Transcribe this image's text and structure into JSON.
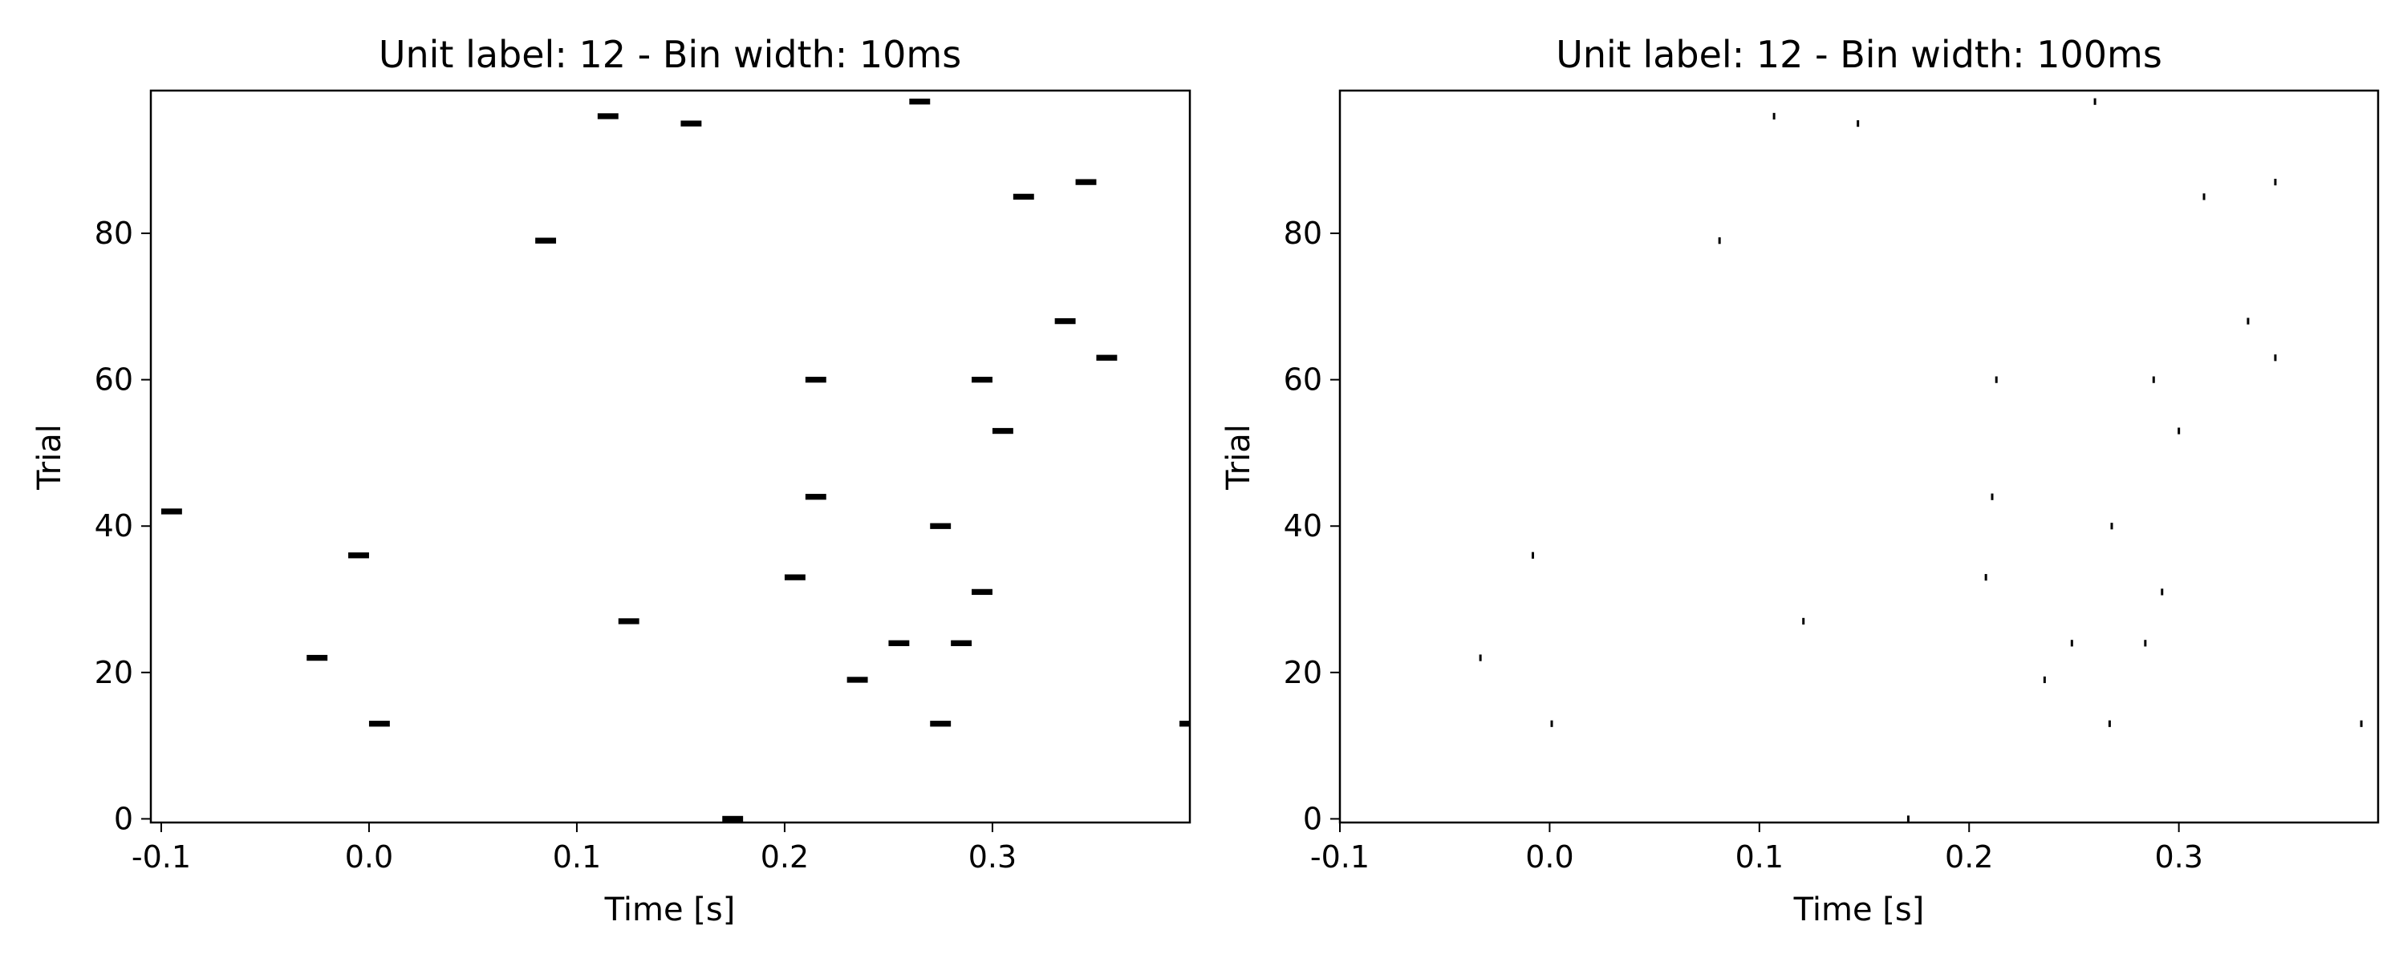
{
  "chart_data": [
    {
      "type": "scatter",
      "title": "Unit label: 12 - Bin width: 10ms",
      "xlabel": "Time [s]",
      "ylabel": "Trial",
      "xlim": [
        -0.105,
        0.395
      ],
      "ylim": [
        -0.5,
        99.5
      ],
      "xticks": [
        -0.1,
        0.0,
        0.1,
        0.2,
        0.3
      ],
      "xtick_labels": [
        "-0.1",
        "0.0",
        "0.1",
        "0.2",
        "0.3"
      ],
      "yticks": [
        0,
        20,
        40,
        60,
        80
      ],
      "ytick_labels": [
        "0",
        "20",
        "40",
        "60",
        "80"
      ],
      "marker": "bin",
      "bin_width": 0.01,
      "grid": false,
      "points": [
        {
          "x": -0.1,
          "y": 42
        },
        {
          "x": -0.03,
          "y": 22
        },
        {
          "x": -0.01,
          "y": 36
        },
        {
          "x": 0.0,
          "y": 13
        },
        {
          "x": 0.08,
          "y": 79
        },
        {
          "x": 0.11,
          "y": 96
        },
        {
          "x": 0.12,
          "y": 27
        },
        {
          "x": 0.15,
          "y": 95
        },
        {
          "x": 0.17,
          "y": 0
        },
        {
          "x": 0.2,
          "y": 33
        },
        {
          "x": 0.21,
          "y": 60
        },
        {
          "x": 0.21,
          "y": 44
        },
        {
          "x": 0.23,
          "y": 19
        },
        {
          "x": 0.25,
          "y": 24
        },
        {
          "x": 0.26,
          "y": 98
        },
        {
          "x": 0.27,
          "y": 40
        },
        {
          "x": 0.27,
          "y": 13
        },
        {
          "x": 0.28,
          "y": 24
        },
        {
          "x": 0.29,
          "y": 60
        },
        {
          "x": 0.29,
          "y": 31
        },
        {
          "x": 0.3,
          "y": 53
        },
        {
          "x": 0.31,
          "y": 85
        },
        {
          "x": 0.33,
          "y": 68
        },
        {
          "x": 0.34,
          "y": 87
        },
        {
          "x": 0.35,
          "y": 63
        },
        {
          "x": 0.39,
          "y": 13
        }
      ]
    },
    {
      "type": "scatter",
      "title": "Unit label: 12 - Bin width: 100ms",
      "xlabel": "Time [s]",
      "ylabel": "Trial",
      "xlim": [
        -0.1,
        0.395
      ],
      "ylim": [
        -0.5,
        99.5
      ],
      "xticks": [
        -0.1,
        0.0,
        0.1,
        0.2,
        0.3
      ],
      "xtick_labels": [
        "-0.1",
        "0.0",
        "0.1",
        "0.2",
        "0.3"
      ],
      "yticks": [
        0,
        20,
        40,
        60,
        80
      ],
      "ytick_labels": [
        "0",
        "20",
        "40",
        "60",
        "80"
      ],
      "marker": "tick",
      "grid": false,
      "points": [
        {
          "x": -0.033,
          "y": 22
        },
        {
          "x": -0.008,
          "y": 36
        },
        {
          "x": 0.001,
          "y": 13
        },
        {
          "x": 0.081,
          "y": 79
        },
        {
          "x": 0.107,
          "y": 96
        },
        {
          "x": 0.121,
          "y": 27
        },
        {
          "x": 0.147,
          "y": 95
        },
        {
          "x": 0.171,
          "y": 0
        },
        {
          "x": 0.208,
          "y": 33
        },
        {
          "x": 0.211,
          "y": 44
        },
        {
          "x": 0.213,
          "y": 60
        },
        {
          "x": 0.236,
          "y": 19
        },
        {
          "x": 0.249,
          "y": 24
        },
        {
          "x": 0.26,
          "y": 98
        },
        {
          "x": 0.267,
          "y": 13
        },
        {
          "x": 0.268,
          "y": 40
        },
        {
          "x": 0.284,
          "y": 24
        },
        {
          "x": 0.288,
          "y": 60
        },
        {
          "x": 0.292,
          "y": 31
        },
        {
          "x": 0.3,
          "y": 53
        },
        {
          "x": 0.312,
          "y": 85
        },
        {
          "x": 0.333,
          "y": 68
        },
        {
          "x": 0.346,
          "y": 87
        },
        {
          "x": 0.346,
          "y": 63
        },
        {
          "x": 0.387,
          "y": 13
        }
      ]
    }
  ]
}
